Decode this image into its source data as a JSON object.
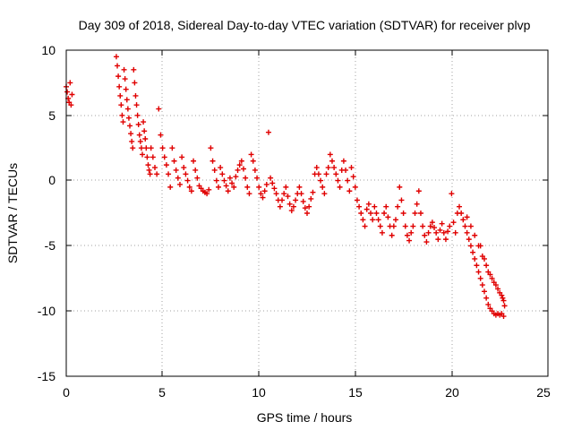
{
  "chart_data": {
    "type": "scatter",
    "title": "Day 309 of 2018, Sidereal Day-to-day VTEC variation (SDTVAR) for receiver plvp",
    "xlabel": "GPS time / hours",
    "ylabel": "SDTVAR / TECUs",
    "xlim": [
      0,
      25
    ],
    "ylim": [
      -15,
      10
    ],
    "x_ticks": [
      "0",
      "5",
      "10",
      "15",
      "20",
      "25"
    ],
    "y_ticks": [
      "10",
      "5",
      "0",
      "-5",
      "-10",
      "-15"
    ],
    "grid": true,
    "marker": "plus",
    "color": "#e00000",
    "series": [
      {
        "name": "SDTVAR",
        "points": [
          [
            0.0,
            7.2
          ],
          [
            0.05,
            6.8
          ],
          [
            0.1,
            6.3
          ],
          [
            0.15,
            6.0
          ],
          [
            0.2,
            7.5
          ],
          [
            0.25,
            5.8
          ],
          [
            0.3,
            6.6
          ],
          [
            2.6,
            9.5
          ],
          [
            2.65,
            8.8
          ],
          [
            2.7,
            8.0
          ],
          [
            2.75,
            7.2
          ],
          [
            2.8,
            6.5
          ],
          [
            2.85,
            5.8
          ],
          [
            2.9,
            5.0
          ],
          [
            2.95,
            4.5
          ],
          [
            3.0,
            8.5
          ],
          [
            3.05,
            7.8
          ],
          [
            3.1,
            7.0
          ],
          [
            3.15,
            6.2
          ],
          [
            3.2,
            5.5
          ],
          [
            3.25,
            4.8
          ],
          [
            3.3,
            4.2
          ],
          [
            3.35,
            3.6
          ],
          [
            3.4,
            3.0
          ],
          [
            3.45,
            2.5
          ],
          [
            3.5,
            8.5
          ],
          [
            3.55,
            7.5
          ],
          [
            3.6,
            6.5
          ],
          [
            3.65,
            5.8
          ],
          [
            3.7,
            5.0
          ],
          [
            3.75,
            4.3
          ],
          [
            3.8,
            3.5
          ],
          [
            3.85,
            3.0
          ],
          [
            3.9,
            2.5
          ],
          [
            3.95,
            2.0
          ],
          [
            4.0,
            4.5
          ],
          [
            4.05,
            3.8
          ],
          [
            4.1,
            3.2
          ],
          [
            4.15,
            2.5
          ],
          [
            4.2,
            1.8
          ],
          [
            4.25,
            1.2
          ],
          [
            4.3,
            0.8
          ],
          [
            4.35,
            0.5
          ],
          [
            4.4,
            2.5
          ],
          [
            4.5,
            1.8
          ],
          [
            4.6,
            1.0
          ],
          [
            4.7,
            0.5
          ],
          [
            4.8,
            5.5
          ],
          [
            4.9,
            3.5
          ],
          [
            5.0,
            2.5
          ],
          [
            5.1,
            1.8
          ],
          [
            5.2,
            1.2
          ],
          [
            5.3,
            0.5
          ],
          [
            5.4,
            -0.5
          ],
          [
            5.5,
            2.5
          ],
          [
            5.6,
            1.5
          ],
          [
            5.7,
            0.8
          ],
          [
            5.8,
            0.2
          ],
          [
            5.9,
            -0.3
          ],
          [
            6.0,
            1.8
          ],
          [
            6.1,
            1.0
          ],
          [
            6.2,
            0.5
          ],
          [
            6.3,
            0.0
          ],
          [
            6.4,
            -0.5
          ],
          [
            6.5,
            -0.8
          ],
          [
            6.6,
            1.5
          ],
          [
            6.7,
            0.8
          ],
          [
            6.8,
            0.2
          ],
          [
            6.9,
            -0.4
          ],
          [
            7.0,
            -0.6
          ],
          [
            7.1,
            -0.8
          ],
          [
            7.2,
            -0.9
          ],
          [
            7.3,
            -1.0
          ],
          [
            7.4,
            -0.7
          ],
          [
            7.5,
            2.5
          ],
          [
            7.6,
            1.5
          ],
          [
            7.7,
            0.8
          ],
          [
            7.8,
            0.0
          ],
          [
            7.9,
            -0.5
          ],
          [
            8.0,
            1.0
          ],
          [
            8.1,
            0.5
          ],
          [
            8.2,
            0.0
          ],
          [
            8.3,
            -0.4
          ],
          [
            8.4,
            -0.8
          ],
          [
            8.5,
            0.2
          ],
          [
            8.6,
            -0.2
          ],
          [
            8.7,
            -0.5
          ],
          [
            8.8,
            0.3
          ],
          [
            8.9,
            0.8
          ],
          [
            9.0,
            1.2
          ],
          [
            9.1,
            1.5
          ],
          [
            9.2,
            0.9
          ],
          [
            9.3,
            0.2
          ],
          [
            9.4,
            -0.5
          ],
          [
            9.5,
            -1.0
          ],
          [
            9.6,
            2.0
          ],
          [
            9.7,
            1.5
          ],
          [
            9.8,
            0.8
          ],
          [
            9.9,
            0.2
          ],
          [
            10.0,
            -0.5
          ],
          [
            10.1,
            -1.0
          ],
          [
            10.2,
            -1.3
          ],
          [
            10.3,
            -0.8
          ],
          [
            10.4,
            -0.3
          ],
          [
            10.5,
            3.7
          ],
          [
            10.6,
            0.2
          ],
          [
            10.7,
            -0.2
          ],
          [
            10.8,
            -0.6
          ],
          [
            10.9,
            -1.0
          ],
          [
            11.0,
            -1.5
          ],
          [
            11.1,
            -2.0
          ],
          [
            11.2,
            -1.5
          ],
          [
            11.3,
            -1.0
          ],
          [
            11.4,
            -0.5
          ],
          [
            11.5,
            -1.2
          ],
          [
            11.6,
            -1.8
          ],
          [
            11.7,
            -2.3
          ],
          [
            11.8,
            -2.0
          ],
          [
            11.9,
            -1.5
          ],
          [
            12.0,
            -1.0
          ],
          [
            12.1,
            -0.5
          ],
          [
            12.2,
            -1.0
          ],
          [
            12.3,
            -1.6
          ],
          [
            12.4,
            -2.1
          ],
          [
            12.5,
            -2.5
          ],
          [
            12.6,
            -2.0
          ],
          [
            12.7,
            -1.4
          ],
          [
            12.8,
            -0.9
          ],
          [
            12.9,
            0.5
          ],
          [
            13.0,
            1.0
          ],
          [
            13.1,
            0.5
          ],
          [
            13.2,
            0.0
          ],
          [
            13.3,
            -0.5
          ],
          [
            13.4,
            -1.0
          ],
          [
            13.5,
            0.5
          ],
          [
            13.6,
            1.0
          ],
          [
            13.7,
            2.0
          ],
          [
            13.8,
            1.5
          ],
          [
            13.9,
            1.0
          ],
          [
            14.0,
            0.5
          ],
          [
            14.1,
            0.0
          ],
          [
            14.2,
            -0.5
          ],
          [
            14.3,
            0.8
          ],
          [
            14.4,
            1.5
          ],
          [
            14.5,
            0.8
          ],
          [
            14.6,
            0.0
          ],
          [
            14.7,
            -0.8
          ],
          [
            14.8,
            1.0
          ],
          [
            14.9,
            0.3
          ],
          [
            15.0,
            -0.5
          ],
          [
            15.1,
            -1.5
          ],
          [
            15.2,
            -2.0
          ],
          [
            15.3,
            -2.5
          ],
          [
            15.4,
            -3.0
          ],
          [
            15.5,
            -3.5
          ],
          [
            15.6,
            -2.2
          ],
          [
            15.7,
            -1.8
          ],
          [
            15.8,
            -2.5
          ],
          [
            15.9,
            -3.0
          ],
          [
            16.0,
            -2.0
          ],
          [
            16.1,
            -2.5
          ],
          [
            16.2,
            -3.0
          ],
          [
            16.3,
            -3.5
          ],
          [
            16.4,
            -4.0
          ],
          [
            16.5,
            -2.5
          ],
          [
            16.6,
            -2.0
          ],
          [
            16.7,
            -2.8
          ],
          [
            16.8,
            -3.5
          ],
          [
            16.9,
            -4.2
          ],
          [
            17.0,
            -3.5
          ],
          [
            17.1,
            -3.0
          ],
          [
            17.2,
            -2.0
          ],
          [
            17.3,
            -0.5
          ],
          [
            17.4,
            -1.5
          ],
          [
            17.5,
            -2.5
          ],
          [
            17.6,
            -3.5
          ],
          [
            17.7,
            -4.2
          ],
          [
            17.8,
            -4.6
          ],
          [
            17.9,
            -4.0
          ],
          [
            18.0,
            -3.5
          ],
          [
            18.1,
            -2.5
          ],
          [
            18.2,
            -1.8
          ],
          [
            18.3,
            -0.8
          ],
          [
            18.4,
            -2.5
          ],
          [
            18.5,
            -3.5
          ],
          [
            18.6,
            -4.2
          ],
          [
            18.7,
            -4.7
          ],
          [
            18.8,
            -4.0
          ],
          [
            18.9,
            -3.5
          ],
          [
            19.0,
            -3.2
          ],
          [
            19.1,
            -3.6
          ],
          [
            19.2,
            -4.0
          ],
          [
            19.3,
            -4.5
          ],
          [
            19.4,
            -3.8
          ],
          [
            19.5,
            -3.3
          ],
          [
            19.6,
            -4.0
          ],
          [
            19.7,
            -4.5
          ],
          [
            19.8,
            -3.9
          ],
          [
            19.9,
            -3.5
          ],
          [
            20.0,
            -1.0
          ],
          [
            20.1,
            -3.2
          ],
          [
            20.2,
            -4.0
          ],
          [
            20.3,
            -2.5
          ],
          [
            20.4,
            -2.0
          ],
          [
            20.5,
            -2.5
          ],
          [
            20.6,
            -3.0
          ],
          [
            20.7,
            -3.5
          ],
          [
            20.8,
            -4.0
          ],
          [
            20.9,
            -4.5
          ],
          [
            21.0,
            -5.0
          ],
          [
            21.1,
            -5.5
          ],
          [
            21.2,
            -6.0
          ],
          [
            21.3,
            -6.5
          ],
          [
            21.4,
            -7.0
          ],
          [
            21.5,
            -7.5
          ],
          [
            21.6,
            -8.0
          ],
          [
            21.7,
            -8.5
          ],
          [
            21.8,
            -9.0
          ],
          [
            21.9,
            -9.5
          ],
          [
            22.0,
            -9.8
          ],
          [
            22.1,
            -10.0
          ],
          [
            22.2,
            -10.2
          ],
          [
            22.3,
            -10.3
          ],
          [
            22.4,
            -10.2
          ],
          [
            22.5,
            -10.3
          ],
          [
            22.6,
            -10.2
          ],
          [
            22.7,
            -10.4
          ],
          [
            20.8,
            -2.8
          ],
          [
            21.0,
            -3.5
          ],
          [
            21.2,
            -4.2
          ],
          [
            21.4,
            -5.0
          ],
          [
            21.6,
            -5.8
          ],
          [
            21.8,
            -6.5
          ],
          [
            22.0,
            -7.2
          ],
          [
            22.2,
            -7.8
          ],
          [
            22.4,
            -8.3
          ],
          [
            22.6,
            -8.8
          ],
          [
            22.7,
            -9.2
          ],
          [
            22.75,
            -9.6
          ],
          [
            21.5,
            -5.0
          ],
          [
            21.7,
            -6.0
          ],
          [
            21.9,
            -7.0
          ],
          [
            22.1,
            -7.5
          ],
          [
            22.3,
            -8.0
          ],
          [
            22.5,
            -8.6
          ],
          [
            22.65,
            -9.0
          ]
        ]
      }
    ]
  }
}
